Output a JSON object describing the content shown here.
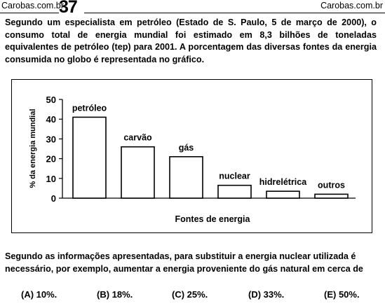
{
  "header": {
    "site_left": "Carobas.com.br",
    "page_number": "37",
    "site_right": "Carobas.com.br"
  },
  "intro_text": "Segundo um especialista em petróleo (Estado de S. Paulo, 5 de março de 2000), o consumo total de energia mundial foi estimado em 8,3 bilhões de toneladas equivalentes de petróleo (tep) para 2001. A porcentagem das diversas fontes da energia consumida no globo é representada no gráfico.",
  "chart_data": {
    "type": "bar",
    "categories": [
      "petróleo",
      "carvão",
      "gás",
      "nuclear",
      "hidrelétrica",
      "outros"
    ],
    "values": [
      41,
      26,
      21,
      6.5,
      3.5,
      2
    ],
    "ylim": [
      0,
      50
    ],
    "yticks": [
      "0",
      "10",
      "20",
      "30",
      "40",
      "50"
    ],
    "ylabel": "% da energia mundial",
    "xlabel": "Fontes de energia",
    "bar_fill": "#ffffff",
    "bar_stroke": "#000000",
    "grid": false
  },
  "question_text": "Segundo as informações apresentadas, para substituir a energia nuclear utilizada é necessário, por exemplo, aumentar a energia proveniente do gás natural em cerca de",
  "options": [
    "(A) 10%.",
    "(B) 18%.",
    "(C) 25%.",
    "(D) 33%.",
    "(E) 50%."
  ]
}
